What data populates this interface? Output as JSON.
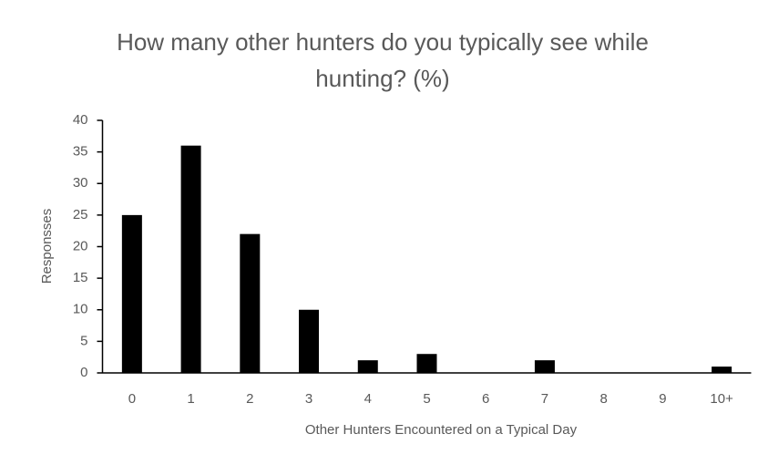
{
  "chart_data": {
    "type": "bar",
    "title": "How many other hunters do you typically see while hunting? (%)",
    "x_label": "Other Hunters Encountered on a Typical Day",
    "y_label": "Responsses",
    "categories": [
      "0",
      "1",
      "2",
      "3",
      "4",
      "5",
      "6",
      "7",
      "8",
      "9",
      "10+"
    ],
    "values": [
      25,
      36,
      22,
      10,
      2,
      3,
      0,
      2,
      0,
      0,
      1
    ],
    "color": "#000000",
    "ylim": [
      0,
      40
    ],
    "yticks": [
      0,
      5,
      10,
      15,
      20,
      25,
      30,
      35,
      40
    ],
    "grid": false
  }
}
